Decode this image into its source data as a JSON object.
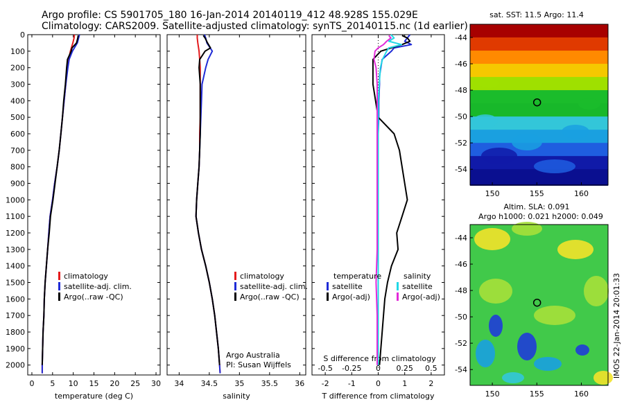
{
  "header": {
    "line1": "Argo profile: CS 5901705_180 16-Jan-2014 20140119_412 48.928S 155.029E",
    "line2": "Climatology: CARS2009. Satellite-adjusted climatology: synTS_20140115.nc (1d earlier)"
  },
  "side_text": "IMOS 22-Jan-2014 20:01:33",
  "colors": {
    "climatology": "#e41a1c",
    "satellite": "#1f2bd6",
    "argo": "#000000",
    "sat_salinity": "#21d8e6",
    "argo_salinity": "#e22bd9"
  },
  "chart_data": [
    {
      "type": "line",
      "id": "temperature",
      "xlabel": "temperature (deg C)",
      "ylabel": "",
      "xlim": [
        -1,
        31
      ],
      "ylim": [
        2060,
        0
      ],
      "xticks": [
        "0",
        "5",
        "10",
        "15",
        "20",
        "25",
        "30"
      ],
      "yticks": [
        "0",
        "100",
        "200",
        "300",
        "400",
        "500",
        "600",
        "700",
        "800",
        "900",
        "1000",
        "1100",
        "1200",
        "1300",
        "1400",
        "1500",
        "1600",
        "1700",
        "1800",
        "1900",
        "2000"
      ],
      "legend": [
        "climatology",
        "satellite-adj. clim.",
        "Argo(..raw -QC)"
      ],
      "series": [
        {
          "name": "climatology",
          "depth": [
            0,
            20,
            50,
            100,
            150,
            200,
            300,
            400,
            500,
            600,
            700,
            800,
            900,
            1000,
            1100,
            1200,
            1300,
            1400,
            1500,
            1600,
            1700,
            1800,
            1900,
            2000,
            2050
          ],
          "values": [
            10.3,
            10.2,
            9.9,
            9.3,
            8.9,
            8.6,
            8.2,
            7.8,
            7.4,
            7.0,
            6.6,
            6.1,
            5.5,
            5.0,
            4.4,
            4.1,
            3.8,
            3.5,
            3.2,
            3.0,
            2.9,
            2.7,
            2.6,
            2.5,
            2.5
          ]
        },
        {
          "name": "satellite-adj. clim.",
          "depth": [
            0,
            20,
            50,
            100,
            150,
            200,
            300,
            400,
            500,
            600,
            700,
            800,
            900,
            1000,
            1100,
            1200,
            1300,
            1400,
            1500,
            1600,
            1700,
            1800,
            1900,
            2000,
            2050
          ],
          "values": [
            11.5,
            11.3,
            11.0,
            9.8,
            9.0,
            8.7,
            8.2,
            7.8,
            7.4,
            7.0,
            6.6,
            6.1,
            5.5,
            5.0,
            4.4,
            4.1,
            3.8,
            3.5,
            3.2,
            3.0,
            2.9,
            2.7,
            2.6,
            2.5,
            2.5
          ]
        },
        {
          "name": "Argo(..raw -QC)",
          "depth": [
            5,
            20,
            50,
            80,
            100,
            150,
            200,
            300,
            400,
            500,
            600,
            700,
            800,
            900,
            1000,
            1100,
            1200,
            1300,
            1400,
            1500,
            1600,
            1700,
            1800,
            1900,
            2000
          ],
          "values": [
            11.2,
            11.1,
            10.8,
            9.7,
            9.5,
            8.6,
            8.4,
            8.1,
            7.7,
            7.4,
            7.0,
            6.6,
            6.1,
            5.6,
            5.1,
            4.5,
            4.2,
            3.8,
            3.5,
            3.2,
            3.0,
            2.9,
            2.7,
            2.6,
            2.5
          ]
        }
      ]
    },
    {
      "type": "line",
      "id": "salinity",
      "xlabel": "salinity",
      "ylabel": "",
      "xlim": [
        33.8,
        36.1
      ],
      "ylim": [
        2060,
        0
      ],
      "xticks": [
        "34",
        "34.5",
        "35",
        "35.5",
        "36"
      ],
      "legend": [
        "climatology",
        "satellite-adj. clim.",
        "Argo(..raw -QC)"
      ],
      "annotation": [
        "Argo Australia",
        "PI: Susan Wijffels"
      ],
      "series": [
        {
          "name": "climatology",
          "depth": [
            0,
            20,
            50,
            100,
            150,
            200,
            300,
            400,
            500,
            600,
            700,
            800,
            900,
            1000,
            1100,
            1200,
            1300,
            1400,
            1500,
            1600,
            1700,
            1800,
            1900,
            2000,
            2050
          ],
          "values": [
            34.3,
            34.3,
            34.31,
            34.33,
            34.34,
            34.35,
            34.35,
            34.35,
            34.35,
            34.34,
            34.34,
            34.33,
            34.31,
            34.29,
            34.28,
            34.32,
            34.37,
            34.44,
            34.5,
            34.55,
            34.59,
            34.62,
            34.65,
            34.67,
            34.68
          ]
        },
        {
          "name": "satellite-adj. clim.",
          "depth": [
            0,
            20,
            50,
            100,
            150,
            200,
            300,
            400,
            500,
            600,
            700,
            800,
            900,
            1000,
            1100,
            1200,
            1300,
            1400,
            1500,
            1600,
            1700,
            1800,
            1900,
            2000,
            2050
          ],
          "values": [
            34.42,
            34.44,
            34.46,
            34.55,
            34.48,
            34.44,
            34.38,
            34.37,
            34.36,
            34.35,
            34.34,
            34.33,
            34.31,
            34.29,
            34.28,
            34.32,
            34.37,
            34.44,
            34.5,
            34.55,
            34.59,
            34.62,
            34.65,
            34.67,
            34.68
          ]
        },
        {
          "name": "Argo(..raw -QC)",
          "depth": [
            5,
            20,
            50,
            80,
            100,
            150,
            200,
            300,
            400,
            500,
            600,
            700,
            800,
            900,
            1000,
            1100,
            1200,
            1300,
            1400,
            1500,
            1600,
            1700,
            1800,
            1900,
            2000
          ],
          "values": [
            34.4,
            34.43,
            34.47,
            34.52,
            34.43,
            34.34,
            34.33,
            34.35,
            34.35,
            34.35,
            34.35,
            34.34,
            34.33,
            34.31,
            34.29,
            34.28,
            34.32,
            34.37,
            34.44,
            34.5,
            34.55,
            34.59,
            34.62,
            34.65,
            34.67
          ]
        }
      ]
    },
    {
      "type": "line",
      "id": "differences",
      "xlabel": "T difference from climatology",
      "x2label": "S difference from climatology",
      "xlim": [
        -2.5,
        2.5
      ],
      "ylim": [
        2060,
        0
      ],
      "xticks": [
        "-2",
        "-1",
        "0",
        "1",
        "2"
      ],
      "x2ticks": [
        "-0.5",
        "-0.25",
        "0",
        "0.25",
        "0.5"
      ],
      "legend": [
        "temperature",
        "satellite",
        "Argo(-adj)",
        "salinity",
        "satellite",
        "Argo(-adj)"
      ],
      "series": [
        {
          "name": "T satellite",
          "depth": [
            0,
            20,
            40,
            60,
            80,
            100,
            150,
            200,
            250,
            300,
            400,
            500,
            600,
            700,
            800,
            1000,
            1200,
            1400,
            1600,
            1800,
            2000
          ],
          "values": [
            1.2,
            1.1,
            1.0,
            1.25,
            0.6,
            0.5,
            0.15,
            0.1,
            0.05,
            0.05,
            0.02,
            0.02,
            0.0,
            0.0,
            0.0,
            0.0,
            0.0,
            0.0,
            0.0,
            0.0,
            0.0
          ]
        },
        {
          "name": "T Argo(-adj)",
          "depth": [
            5,
            20,
            40,
            60,
            80,
            100,
            150,
            200,
            300,
            400,
            500,
            600,
            700,
            800,
            900,
            1000,
            1100,
            1200,
            1300,
            1400,
            1500,
            1600,
            1700,
            1800,
            1900,
            2000
          ],
          "values": [
            0.9,
            1.1,
            1.2,
            0.9,
            0.5,
            0.1,
            -0.2,
            -0.2,
            -0.2,
            -0.1,
            0.0,
            0.6,
            0.8,
            0.9,
            1.0,
            1.1,
            0.9,
            0.7,
            0.75,
            0.5,
            0.35,
            0.25,
            0.2,
            0.15,
            0.1,
            0.05
          ]
        },
        {
          "name": "S satellite",
          "depth": [
            0,
            20,
            40,
            60,
            80,
            100,
            150,
            200,
            300,
            400,
            500,
            700,
            900,
            1100,
            1300,
            1500,
            1700,
            1900,
            2000
          ],
          "values": [
            0.12,
            0.15,
            0.1,
            0.22,
            0.1,
            0.08,
            0.04,
            0.02,
            0.01,
            0.0,
            0.0,
            0.0,
            0.0,
            0.0,
            0.0,
            0.0,
            0.0,
            0.0,
            0.0
          ]
        },
        {
          "name": "S Argo(-adj)",
          "depth": [
            5,
            20,
            40,
            60,
            80,
            100,
            150,
            200,
            300,
            500,
            700,
            900,
            1100,
            1200,
            1300,
            1500,
            1700,
            1900,
            2000
          ],
          "values": [
            0.1,
            0.12,
            0.08,
            0.05,
            0.0,
            -0.03,
            -0.04,
            -0.02,
            -0.01,
            -0.01,
            -0.01,
            -0.01,
            -0.01,
            -0.01,
            -0.01,
            -0.02,
            -0.01,
            -0.01,
            -0.01
          ]
        }
      ]
    },
    {
      "type": "heatmap",
      "id": "sst_map",
      "title": "sat. SST: 11.5 Argo: 11.4",
      "xlim": [
        147.5,
        163
      ],
      "ylim": [
        -55.2,
        -43
      ],
      "xticks": [
        "150",
        "155",
        "160"
      ],
      "yticks": [
        "-44",
        "-46",
        "-48",
        "-50",
        "-52",
        "-54"
      ],
      "marker": {
        "lon": 155.029,
        "lat": -48.928
      },
      "bands_lat": [
        -43,
        -44,
        -45,
        -46,
        -47,
        -48,
        -49,
        -50,
        -51,
        -52,
        -53,
        -54,
        -55.2
      ],
      "band_colors": [
        "#a70000",
        "#e03a00",
        "#ff8a00",
        "#f5c800",
        "#9fe000",
        "#1bbc2b",
        "#18b82a",
        "#33c6d9",
        "#1aa0e0",
        "#1f5ee0",
        "#101aa8",
        "#0a0f90"
      ]
    },
    {
      "type": "heatmap",
      "id": "sla_map",
      "title": "Altim. SLA: 0.091",
      "subtitle": "Argo h1000: 0.021 h2000: 0.049",
      "xlim": [
        147.5,
        163
      ],
      "ylim": [
        -55.2,
        -43
      ],
      "xticks": [
        "150",
        "155",
        "160"
      ],
      "yticks": [
        "-44",
        "-46",
        "-48",
        "-50",
        "-52",
        "-54"
      ],
      "marker": {
        "lon": 155.029,
        "lat": -48.928
      }
    }
  ]
}
